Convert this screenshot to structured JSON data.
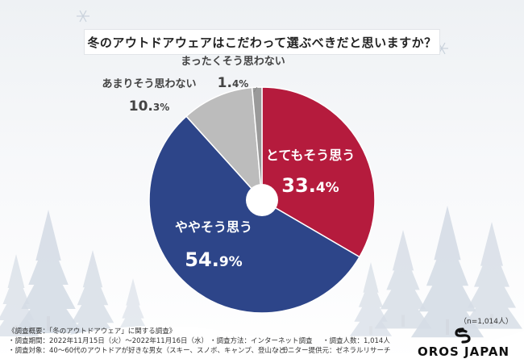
{
  "title": "冬のアウトドアウェアはこだわって選ぶべきだと思いますか？",
  "n_label": "（n=1,014人）",
  "footer": {
    "heading": "《調査概要：「冬のアウトドアウェア」に関する調査》",
    "period": "・調査期間：2022年11月15日（火）～2022年11月16日（水）",
    "method": "・調査方法：インターネット調査",
    "count": "・調査人数：1,014人",
    "target": "・調査対象：40～60代のアウトドアが好きな男女（スキー、スノボ、キャンプ、登山など）",
    "provider": "・モニター提供元：ゼネラルリサーチ"
  },
  "logo": {
    "text": "OROS JAPAN"
  },
  "chart_data": {
    "type": "pie",
    "style": "donut",
    "slices": [
      {
        "label": "とてもそう思う",
        "value": 33.4,
        "pct_num": "33.",
        "pct_dec": "4",
        "pct_sign": "%",
        "color": "#b51b3d",
        "text_color": "#ffffff"
      },
      {
        "label": "ややそう思う",
        "value": 54.9,
        "pct_num": "54.",
        "pct_dec": "9",
        "pct_sign": "%",
        "color": "#2d4589",
        "text_color": "#ffffff"
      },
      {
        "label": "あまりそう思わない",
        "value": 10.3,
        "pct_num": "10.",
        "pct_dec": "3",
        "pct_sign": "%",
        "color": "#bcbcbc",
        "text_color": "#444444"
      },
      {
        "label": "まったくそう思わない",
        "value": 1.4,
        "pct_num": "1.",
        "pct_dec": "4",
        "pct_sign": "%",
        "color": "#9a9a9a",
        "text_color": "#444444"
      }
    ]
  }
}
